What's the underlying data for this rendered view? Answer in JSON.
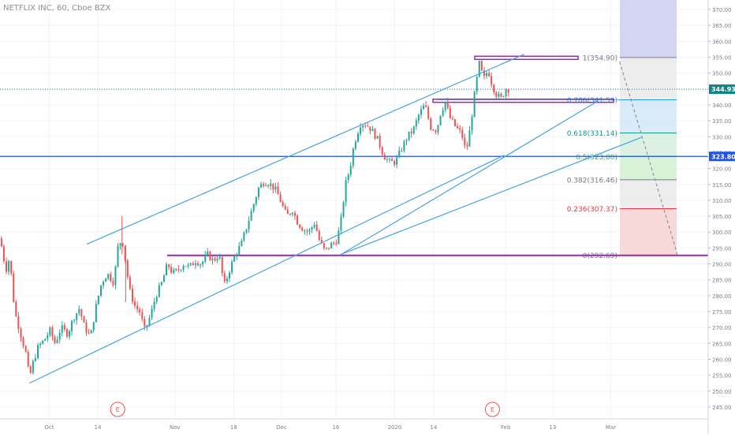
{
  "header": {
    "symbol_title": "NETFLIX INC, 60, Cboe BZX"
  },
  "chart_data": {
    "type": "candlestick",
    "price_axis": {
      "range": [
        243,
        373
      ],
      "ticks": [
        "370.00",
        "365.00",
        "360.00",
        "355.00",
        "350.00",
        "345.00",
        "340.00",
        "335.00",
        "330.00",
        "325.00",
        "320.00",
        "315.00",
        "310.00",
        "305.00",
        "300.00",
        "295.00",
        "290.00",
        "285.00",
        "280.00",
        "275.00",
        "270.00",
        "265.00",
        "260.00",
        "255.00",
        "250.00",
        "245.00"
      ],
      "tick_values": [
        370,
        365,
        360,
        355,
        350,
        345,
        340,
        335,
        330,
        325,
        320,
        315,
        310,
        305,
        300,
        295,
        290,
        285,
        280,
        275,
        270,
        265,
        260,
        255,
        250,
        245
      ]
    },
    "time_axis": {
      "labels": [
        "Oct",
        "14",
        "Nov",
        "18",
        "Dec",
        "16",
        "2020",
        "14",
        "Feb",
        "13",
        "Mar"
      ],
      "label_positions": [
        0.067,
        0.133,
        0.238,
        0.318,
        0.383,
        0.457,
        0.537,
        0.59,
        0.688,
        0.752,
        0.831
      ]
    },
    "last_price": {
      "label": "344.93",
      "value": 344.93,
      "color": "#138484"
    },
    "marked_level": {
      "label": "323.80",
      "value": 323.8,
      "color": "#1e53e5"
    },
    "fibonacci": {
      "levels": [
        {
          "ratio": 1,
          "label": "1(354.90)",
          "value": 354.9,
          "color": "#787b86",
          "fill": "#ebebeb"
        },
        {
          "ratio": 0.786,
          "label": "0.786(341.59)",
          "value": 341.59,
          "color": "#2196f3",
          "fill": "#d5e8f7"
        },
        {
          "ratio": 0.618,
          "label": "0.618(331.14)",
          "value": 331.14,
          "color": "#089981",
          "fill": "#d8f0e1"
        },
        {
          "ratio": 0.5,
          "label": "0.5(323.80)",
          "value": 323.8,
          "color": "#4caf50",
          "fill": "#d4f1d4"
        },
        {
          "ratio": 0.382,
          "label": "0.382(316.46)",
          "value": 316.46,
          "color": "#787b86",
          "fill": "#ebebeb"
        },
        {
          "ratio": 0.236,
          "label": "0.236(307.37)",
          "value": 307.37,
          "color": "#f23645",
          "fill": "#f7d5d5"
        },
        {
          "ratio": 0,
          "label": "0(292.69)",
          "value": 292.69,
          "color": "#787b86",
          "fill": "#ebebeb"
        }
      ],
      "extension_fill": "#d2d2f2"
    },
    "earnings_markers": [
      {
        "label": "E",
        "t": 0.16
      },
      {
        "label": "E",
        "t": 0.67
      }
    ],
    "horizontal_levels": [
      {
        "name": "support",
        "value": 292.69,
        "color": "#9c27b0"
      },
      {
        "name": "resistance-box-1",
        "value": 341.3,
        "color": "#9c27b0"
      },
      {
        "name": "resistance-box-2",
        "value": 354.8,
        "color": "#9c27b0"
      }
    ],
    "trendlines": [
      {
        "name": "channel-upper",
        "points": [
          [
            0.118,
            296.2
          ],
          [
            0.713,
            355.9
          ]
        ],
        "color": "#4aa3df"
      },
      {
        "name": "channel-lower",
        "points": [
          [
            0.04,
            252.5
          ],
          [
            0.686,
            324.2
          ]
        ],
        "color": "#4aa3df"
      },
      {
        "name": "inner-support",
        "points": [
          [
            0.463,
            292.8
          ],
          [
            0.814,
            341.3
          ]
        ],
        "color": "#4aa3df"
      },
      {
        "name": "outer-support",
        "points": [
          [
            0.463,
            292.9
          ],
          [
            0.873,
            329.8
          ]
        ],
        "color": "#4aa3df"
      }
    ],
    "projection": {
      "from": [
        0.843,
        353.6
      ],
      "to": [
        0.922,
        292.69
      ],
      "color": "#888888"
    },
    "colors": {
      "up": "#26a69a",
      "down": "#ef5350",
      "grid": "#f0f3fa"
    },
    "price_path": [
      [
        0.0,
        298
      ],
      [
        0.008,
        288
      ],
      [
        0.013,
        292
      ],
      [
        0.02,
        275
      ],
      [
        0.028,
        268
      ],
      [
        0.035,
        262
      ],
      [
        0.04,
        254
      ],
      [
        0.045,
        259
      ],
      [
        0.052,
        264
      ],
      [
        0.06,
        266
      ],
      [
        0.068,
        269
      ],
      [
        0.075,
        265
      ],
      [
        0.083,
        270
      ],
      [
        0.092,
        268
      ],
      [
        0.1,
        273
      ],
      [
        0.108,
        276
      ],
      [
        0.115,
        270
      ],
      [
        0.123,
        267
      ],
      [
        0.13,
        276
      ],
      [
        0.138,
        284
      ],
      [
        0.146,
        287
      ],
      [
        0.155,
        284
      ],
      [
        0.16,
        295
      ],
      [
        0.166,
        298
      ],
      [
        0.17,
        292
      ],
      [
        0.176,
        282
      ],
      [
        0.183,
        277
      ],
      [
        0.19,
        275
      ],
      [
        0.197,
        269
      ],
      [
        0.205,
        274
      ],
      [
        0.212,
        280
      ],
      [
        0.22,
        284
      ],
      [
        0.228,
        290
      ],
      [
        0.235,
        287
      ],
      [
        0.242,
        288
      ],
      [
        0.25,
        290
      ],
      [
        0.258,
        289
      ],
      [
        0.266,
        291
      ],
      [
        0.274,
        290
      ],
      [
        0.282,
        293
      ],
      [
        0.29,
        291
      ],
      [
        0.298,
        293
      ],
      [
        0.305,
        283
      ],
      [
        0.312,
        288
      ],
      [
        0.32,
        293
      ],
      [
        0.328,
        296
      ],
      [
        0.336,
        302
      ],
      [
        0.344,
        308
      ],
      [
        0.352,
        314
      ],
      [
        0.36,
        316
      ],
      [
        0.368,
        315
      ],
      [
        0.376,
        313
      ],
      [
        0.383,
        309
      ],
      [
        0.39,
        305
      ],
      [
        0.398,
        307
      ],
      [
        0.405,
        303
      ],
      [
        0.412,
        301
      ],
      [
        0.42,
        300
      ],
      [
        0.428,
        303
      ],
      [
        0.435,
        297
      ],
      [
        0.442,
        294
      ],
      [
        0.45,
        296
      ],
      [
        0.457,
        297
      ],
      [
        0.463,
        302
      ],
      [
        0.47,
        315
      ],
      [
        0.476,
        320
      ],
      [
        0.482,
        328
      ],
      [
        0.49,
        334
      ],
      [
        0.498,
        334
      ],
      [
        0.506,
        332
      ],
      [
        0.514,
        329
      ],
      [
        0.522,
        324
      ],
      [
        0.53,
        322
      ],
      [
        0.538,
        322
      ],
      [
        0.546,
        326
      ],
      [
        0.554,
        330
      ],
      [
        0.562,
        332
      ],
      [
        0.57,
        337
      ],
      [
        0.578,
        340
      ],
      [
        0.586,
        333
      ],
      [
        0.594,
        332
      ],
      [
        0.6,
        338
      ],
      [
        0.606,
        341
      ],
      [
        0.612,
        336
      ],
      [
        0.62,
        333
      ],
      [
        0.628,
        331
      ],
      [
        0.634,
        325
      ],
      [
        0.64,
        333
      ],
      [
        0.646,
        344
      ],
      [
        0.652,
        353
      ],
      [
        0.658,
        348
      ],
      [
        0.664,
        351
      ],
      [
        0.67,
        346
      ],
      [
        0.676,
        343
      ],
      [
        0.682,
        342
      ],
      [
        0.688,
        345
      ],
      [
        0.694,
        344.93
      ]
    ]
  }
}
